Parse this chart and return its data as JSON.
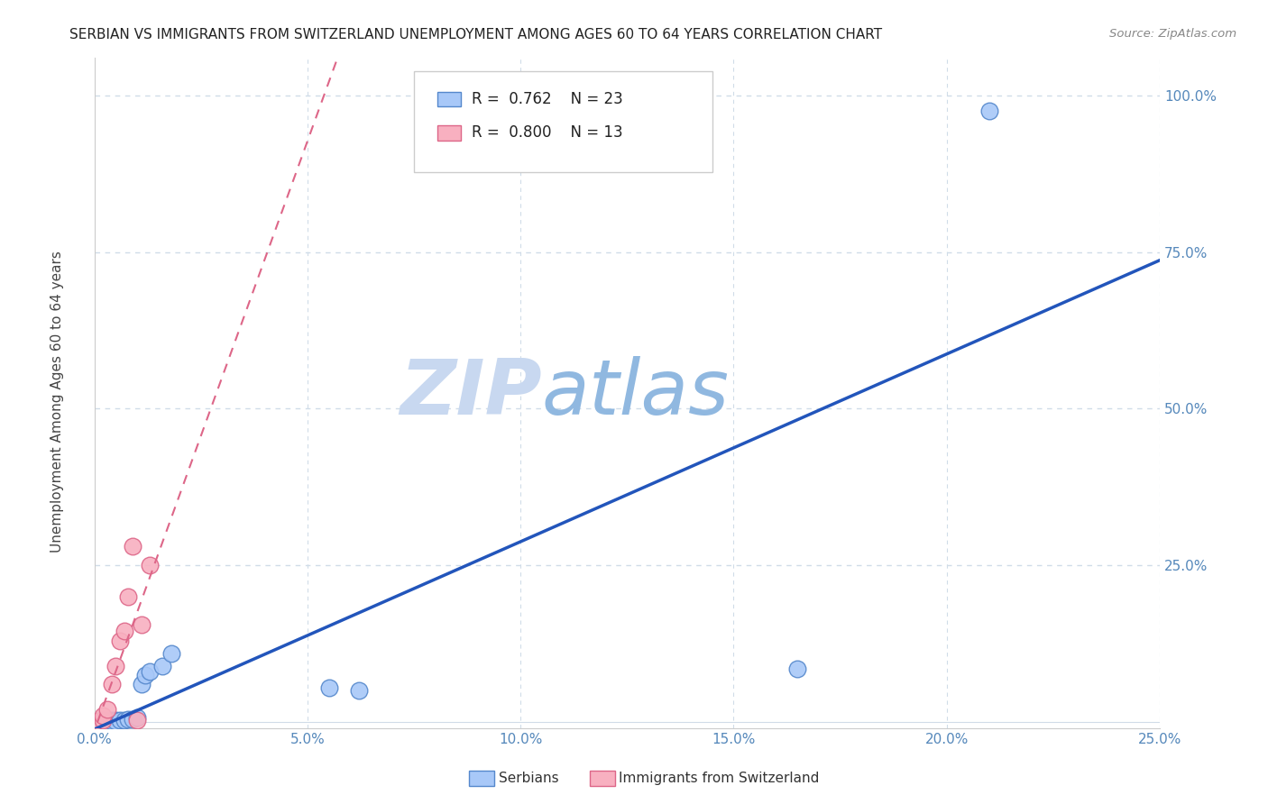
{
  "title": "SERBIAN VS IMMIGRANTS FROM SWITZERLAND UNEMPLOYMENT AMONG AGES 60 TO 64 YEARS CORRELATION CHART",
  "source": "Source: ZipAtlas.com",
  "ylabel": "Unemployment Among Ages 60 to 64 years",
  "xlim": [
    0.0,
    0.25
  ],
  "ylim": [
    -0.01,
    1.06
  ],
  "x_ticks": [
    0.0,
    0.05,
    0.1,
    0.15,
    0.2,
    0.25
  ],
  "y_ticks": [
    0.0,
    0.25,
    0.5,
    0.75,
    1.0
  ],
  "x_tick_labels": [
    "0.0%",
    "5.0%",
    "10.0%",
    "15.0%",
    "20.0%",
    "25.0%"
  ],
  "y_tick_labels": [
    "",
    "25.0%",
    "50.0%",
    "75.0%",
    "100.0%"
  ],
  "serbians_x": [
    0.001,
    0.002,
    0.002,
    0.003,
    0.003,
    0.004,
    0.004,
    0.005,
    0.005,
    0.006,
    0.007,
    0.008,
    0.009,
    0.01,
    0.011,
    0.012,
    0.013,
    0.016,
    0.018,
    0.055,
    0.062,
    0.165,
    0.21
  ],
  "serbians_y": [
    0.002,
    0.002,
    0.003,
    0.003,
    0.002,
    0.003,
    0.002,
    0.003,
    0.002,
    0.003,
    0.003,
    0.005,
    0.005,
    0.008,
    0.06,
    0.075,
    0.08,
    0.09,
    0.11,
    0.055,
    0.05,
    0.085,
    0.975
  ],
  "swiss_x": [
    0.001,
    0.002,
    0.002,
    0.003,
    0.004,
    0.005,
    0.006,
    0.007,
    0.008,
    0.009,
    0.01,
    0.011,
    0.013
  ],
  "swiss_y": [
    0.002,
    0.003,
    0.01,
    0.02,
    0.06,
    0.09,
    0.13,
    0.145,
    0.2,
    0.28,
    0.003,
    0.155,
    0.25
  ],
  "serbians_color": "#a8c8f8",
  "serbians_edge_color": "#5588cc",
  "swiss_color": "#f8b0c0",
  "swiss_edge_color": "#dd6688",
  "blue_line_color": "#2255bb",
  "pink_line_color": "#dd6688",
  "pink_dash_color": "#f0a0b8",
  "R_serbian": "0.762",
  "N_serbian": "23",
  "R_swiss": "0.800",
  "N_swiss": "13",
  "legend_serbian_label": "Serbians",
  "legend_swiss_label": "Immigrants from Switzerland",
  "watermark_zip": "ZIP",
  "watermark_atlas": "atlas",
  "watermark_color_zip": "#c8d8f0",
  "watermark_color_atlas": "#90b8e0",
  "background_color": "#ffffff",
  "grid_color": "#d0dce8",
  "title_color": "#222222",
  "axis_label_color": "#444444",
  "tick_color": "#5588bb",
  "source_color": "#888888"
}
